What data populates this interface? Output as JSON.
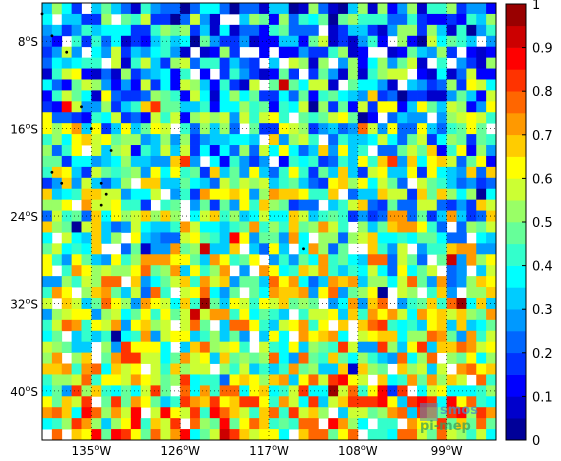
{
  "map": {
    "lat_labels": [
      {
        "deg": "8",
        "hemi": "S"
      },
      {
        "deg": "16",
        "hemi": "S"
      },
      {
        "deg": "24",
        "hemi": "S"
      },
      {
        "deg": "32",
        "hemi": "S"
      },
      {
        "deg": "40",
        "hemi": "S"
      }
    ],
    "lon_labels": [
      {
        "deg": "135",
        "hemi": "W"
      },
      {
        "deg": "126",
        "hemi": "W"
      },
      {
        "deg": "117",
        "hemi": "W"
      },
      {
        "deg": "108",
        "hemi": "W"
      },
      {
        "deg": "99",
        "hemi": "W"
      }
    ],
    "lat_range_deg": [
      -44.5,
      -4.5
    ],
    "lon_range_deg": [
      -140,
      -94
    ],
    "grid_step_deg": 1,
    "graticule": "dotted",
    "missing_cell_color": "#ffffff",
    "colormap": "jet",
    "colorbar": {
      "ticks": [
        "0",
        "0.1",
        "0.2",
        "0.3",
        "0.4",
        "0.5",
        "0.6",
        "0.7",
        "0.8",
        "0.9",
        "1"
      ],
      "range": [
        0,
        1
      ],
      "levels": 20
    },
    "watermark": {
      "line1": "smos",
      "line2": "pi-mep",
      "colors": [
        "#4a8cc6",
        "#3aa05a"
      ]
    }
  }
}
